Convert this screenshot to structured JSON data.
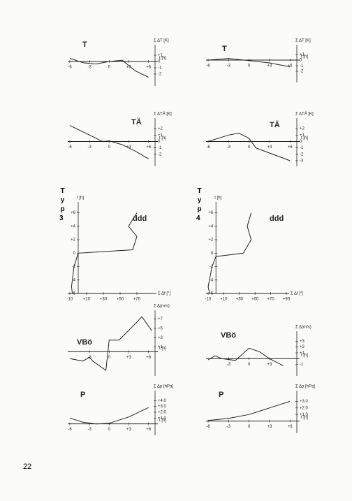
{
  "page_number": "22",
  "type_labels": [
    {
      "word": "Typ",
      "number": "3"
    },
    {
      "word": "Typ",
      "number": "4"
    }
  ],
  "chart_data": [
    {
      "type": "line",
      "title": "T",
      "x_label": "t [h]",
      "y_label": "Σ ΔT [K]",
      "color": "#222",
      "x": [
        -6,
        -4,
        -2,
        0,
        2,
        4,
        6
      ],
      "values": [
        0.5,
        -0.2,
        -0.4,
        0,
        0.2,
        -1.5,
        -2.5
      ],
      "xlim": [
        -6,
        7
      ],
      "ylim": [
        -3,
        2
      ],
      "xticks": [
        {
          "value": -6,
          "label": "-6"
        },
        {
          "value": -3,
          "label": "-3"
        },
        0,
        {
          "value": 3,
          "label": "+3"
        },
        {
          "value": 6,
          "label": "+6"
        }
      ],
      "yticks": [
        -2,
        -1,
        0,
        {
          "value": 1,
          "label": "+1"
        }
      ]
    },
    {
      "type": "line",
      "title": "TÄ",
      "x_label": "t [h]",
      "y_label": "Σ ΔTÄ [K]",
      "color": "#222",
      "x": [
        -6,
        -3,
        -1,
        0,
        2,
        4,
        6
      ],
      "values": [
        2.5,
        1,
        0,
        0.1,
        -0.5,
        -1.5,
        -2.7
      ],
      "xlim": [
        -6,
        7
      ],
      "ylim": [
        -3,
        3
      ],
      "xticks": [
        {
          "value": -6,
          "label": "-6"
        },
        {
          "value": -3,
          "label": "-3"
        },
        0,
        {
          "value": 3,
          "label": "+3"
        },
        {
          "value": 6,
          "label": "+6"
        }
      ],
      "yticks": [
        -2,
        -1,
        0,
        {
          "value": 1,
          "label": "+1"
        },
        {
          "value": 2,
          "label": "+2"
        }
      ]
    },
    {
      "type": "profile",
      "title": "ddd",
      "x_label": "Σ Δf [°]",
      "y_label": "t [h]",
      "color": "#222",
      "x": [
        70,
        60,
        70,
        65,
        0,
        -5,
        -8,
        -7
      ],
      "values": [
        6,
        4,
        2.5,
        0.5,
        0,
        -2,
        -5,
        -6
      ],
      "xlim": [
        -10,
        90
      ],
      "ylim": [
        -6,
        7
      ],
      "xticks": [
        {
          "value": -10,
          "label": "-10"
        },
        {
          "value": 10,
          "label": "+10"
        },
        {
          "value": 30,
          "label": "+30"
        },
        {
          "value": 50,
          "label": "+50"
        },
        {
          "value": 70,
          "label": "+70"
        }
      ],
      "yticks": [
        -6,
        -4,
        -2,
        0,
        {
          "value": 2,
          "label": "+2"
        },
        {
          "value": 4,
          "label": "+4"
        },
        {
          "value": 6,
          "label": "+6"
        }
      ]
    },
    {
      "type": "line",
      "title": "VBö",
      "x_label": "t [h]",
      "y_label": "Σ Δ(m/s)",
      "color": "#222",
      "x": [
        -6,
        -4,
        -3,
        -2.5,
        -0.5,
        0,
        1.5,
        4,
        5,
        6.5
      ],
      "values": [
        -1.5,
        -2,
        -1.2,
        -2,
        -4,
        2.5,
        2.5,
        6,
        7.5,
        4.5
      ],
      "xlim": [
        -6,
        7
      ],
      "ylim": [
        -4,
        8
      ],
      "xticks": [
        {
          "value": -3,
          "label": "-3"
        },
        0,
        {
          "value": 3,
          "label": "+3"
        },
        {
          "value": 6,
          "label": "+6"
        }
      ],
      "yticks": [
        {
          "value": 1,
          "label": "+1"
        },
        {
          "value": 3,
          "label": "+3"
        },
        {
          "value": 5,
          "label": "+5"
        },
        {
          "value": 7,
          "label": "+7"
        }
      ]
    },
    {
      "type": "line",
      "title": "P",
      "x_label": "t [h]",
      "y_label": "Σ Δp [hPa]",
      "color": "#222",
      "x": [
        -6,
        -4,
        -2,
        0,
        3,
        6
      ],
      "values": [
        1,
        0.3,
        0,
        0.1,
        1.2,
        2.8
      ],
      "xlim": [
        -6,
        7
      ],
      "ylim": [
        -1,
        5
      ],
      "xticks": [
        {
          "value": -6,
          "label": "-6"
        },
        {
          "value": -3,
          "label": "-3"
        },
        0,
        {
          "value": 3,
          "label": "+3"
        },
        {
          "value": 6,
          "label": "+6"
        }
      ],
      "yticks": [
        {
          "value": 1,
          "label": "+1.0"
        },
        {
          "value": 2,
          "label": "+2.0"
        },
        {
          "value": 3,
          "label": "+3.0"
        },
        {
          "value": 4,
          "label": "+4.0"
        }
      ]
    },
    {
      "type": "line",
      "title": "T",
      "x_label": "t [h]",
      "y_label": "Σ ΔT [K]",
      "color": "#222",
      "x": [
        -6,
        -3,
        0,
        3,
        6
      ],
      "values": [
        0,
        0.3,
        -0.1,
        -0.5,
        -1.2
      ],
      "xlim": [
        -6,
        7
      ],
      "ylim": [
        -3,
        2
      ],
      "xticks": [
        {
          "value": -6,
          "label": "-6"
        },
        {
          "value": -3,
          "label": "-3"
        },
        0,
        {
          "value": 3,
          "label": "+3"
        },
        {
          "value": 6,
          "label": "+6"
        }
      ],
      "yticks": [
        -2,
        -1,
        0,
        {
          "value": 1,
          "label": "+1"
        }
      ]
    },
    {
      "type": "line",
      "title": "TÄ",
      "x_label": "t [h]",
      "y_label": "Σ ΔTÄ [K]",
      "color": "#222",
      "x": [
        -6,
        -3,
        -1.5,
        0,
        1,
        3,
        6
      ],
      "values": [
        0,
        1,
        1.3,
        0.5,
        -1,
        -1.8,
        -3
      ],
      "xlim": [
        -6,
        7
      ],
      "ylim": [
        -3,
        3
      ],
      "xticks": [
        {
          "value": -6,
          "label": "-6"
        },
        {
          "value": -3,
          "label": "-3"
        },
        0,
        {
          "value": 3,
          "label": "+3"
        },
        {
          "value": 6,
          "label": "+6"
        }
      ],
      "yticks": [
        -3,
        -2,
        -1,
        0,
        {
          "value": 1,
          "label": "+1"
        },
        {
          "value": 2,
          "label": "+2"
        }
      ]
    },
    {
      "type": "profile",
      "title": "ddd",
      "x_label": "Σ Δf [°]",
      "y_label": "t [h]",
      "color": "#222",
      "x": [
        45,
        40,
        45,
        40,
        35,
        0,
        -5,
        -10,
        -8
      ],
      "values": [
        6,
        4,
        2,
        1,
        0,
        -0.5,
        -2,
        -5,
        -6
      ],
      "xlim": [
        -10,
        90
      ],
      "ylim": [
        -6,
        7
      ],
      "xticks": [
        {
          "value": -10,
          "label": "-10"
        },
        {
          "value": 10,
          "label": "+10"
        },
        {
          "value": 30,
          "label": "+30"
        },
        {
          "value": 50,
          "label": "+50"
        },
        {
          "value": 70,
          "label": "+70"
        },
        {
          "value": 90,
          "label": "+90"
        }
      ],
      "yticks": [
        -6,
        -4,
        -2,
        0,
        {
          "value": 2,
          "label": "+2"
        },
        {
          "value": 4,
          "label": "+4"
        },
        {
          "value": 6,
          "label": "+6"
        }
      ]
    },
    {
      "type": "line",
      "title": "VBö",
      "x_label": "t [h]",
      "y_label": "Σ Δ(m/s)",
      "color": "#222",
      "x": [
        -6,
        -5,
        -4,
        -2,
        0,
        1.5,
        3,
        5
      ],
      "values": [
        -0.2,
        0.5,
        0,
        -0.3,
        1.8,
        1.2,
        0,
        -1.2
      ],
      "xlim": [
        -6,
        7
      ],
      "ylim": [
        -2,
        4
      ],
      "xticks": [
        {
          "value": -3,
          "label": "-3"
        },
        0,
        {
          "value": 3,
          "label": "+3"
        }
      ],
      "yticks": [
        -1,
        {
          "value": 1,
          "label": "+1"
        },
        {
          "value": 2,
          "label": "+2"
        },
        {
          "value": 3,
          "label": "+3"
        }
      ]
    },
    {
      "type": "line",
      "title": "P",
      "x_label": "t [h]",
      "y_label": "Σ Δp [hPa]",
      "color": "#222",
      "x": [
        -6,
        -3,
        0,
        3,
        6
      ],
      "values": [
        0.1,
        0.4,
        1,
        2,
        3
      ],
      "xlim": [
        -6,
        7
      ],
      "ylim": [
        -1,
        4
      ],
      "xticks": [
        {
          "value": -6,
          "label": "-6"
        },
        {
          "value": -3,
          "label": "-3"
        },
        0,
        {
          "value": 3,
          "label": "+3"
        },
        {
          "value": 6,
          "label": "+6"
        }
      ],
      "yticks": [
        {
          "value": 1,
          "label": "+1.0"
        },
        {
          "value": 2,
          "label": "+2.0"
        },
        {
          "value": 3,
          "label": "+3.0"
        }
      ]
    }
  ]
}
